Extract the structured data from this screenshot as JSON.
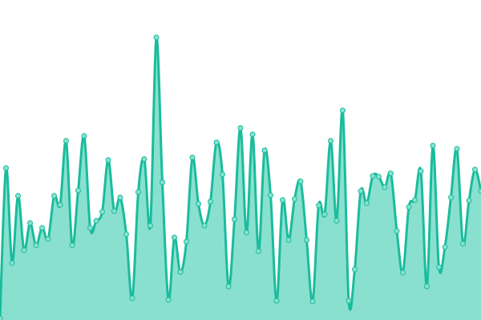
{
  "chart_data": {
    "type": "area",
    "title": "",
    "xlabel": "",
    "ylabel": "",
    "x": [
      0,
      1,
      2,
      3,
      4,
      5,
      6,
      7,
      8,
      9,
      10,
      11,
      12,
      13,
      14,
      15,
      16,
      17,
      18,
      19,
      20,
      21,
      22,
      23,
      24,
      25,
      26,
      27,
      28,
      29,
      30,
      31,
      32,
      33,
      34,
      35,
      36,
      37,
      38,
      39,
      40,
      41,
      42,
      43,
      44,
      45,
      46,
      47,
      48,
      49,
      50,
      51,
      52,
      53,
      54,
      55,
      56,
      57,
      58,
      59,
      60,
      61,
      62,
      63,
      64,
      65,
      66,
      67,
      68,
      69,
      70,
      71,
      72,
      73,
      74,
      75,
      76,
      77,
      78,
      79,
      80
    ],
    "values": [
      0.5,
      47.5,
      17.8,
      38.8,
      21.8,
      30.3,
      23.3,
      28.8,
      25.3,
      38.8,
      36,
      56,
      23.3,
      40.5,
      57.5,
      28.8,
      31,
      33.8,
      50,
      34,
      38.3,
      26.8,
      6.8,
      40,
      50.3,
      29.5,
      88.3,
      43,
      6.3,
      25.8,
      15,
      24.5,
      50.8,
      36.3,
      29.5,
      37,
      55.5,
      45.5,
      10.5,
      31.5,
      60,
      27.3,
      58,
      21.5,
      53,
      39,
      6,
      37.5,
      25,
      37.8,
      43.3,
      25,
      5.8,
      35.8,
      33,
      56,
      31,
      65.5,
      6,
      15.8,
      40.3,
      36.5,
      45,
      44.8,
      41.5,
      45.8,
      27.8,
      14.8,
      35.3,
      37.5,
      46.5,
      10.5,
      54.5,
      16.5,
      22.8,
      38.3,
      53.5,
      23.8,
      37.3,
      47,
      40.3
    ],
    "xlim": [
      0,
      80
    ],
    "ylim": [
      0,
      100
    ],
    "curve": "smooth",
    "grid": false,
    "axes_visible": false,
    "markers": true,
    "colors": {
      "line": "#1abc9c",
      "fill": "#8ae0cf",
      "marker_fill": "#8ae0cf",
      "marker_stroke": "#1abc9c"
    }
  }
}
